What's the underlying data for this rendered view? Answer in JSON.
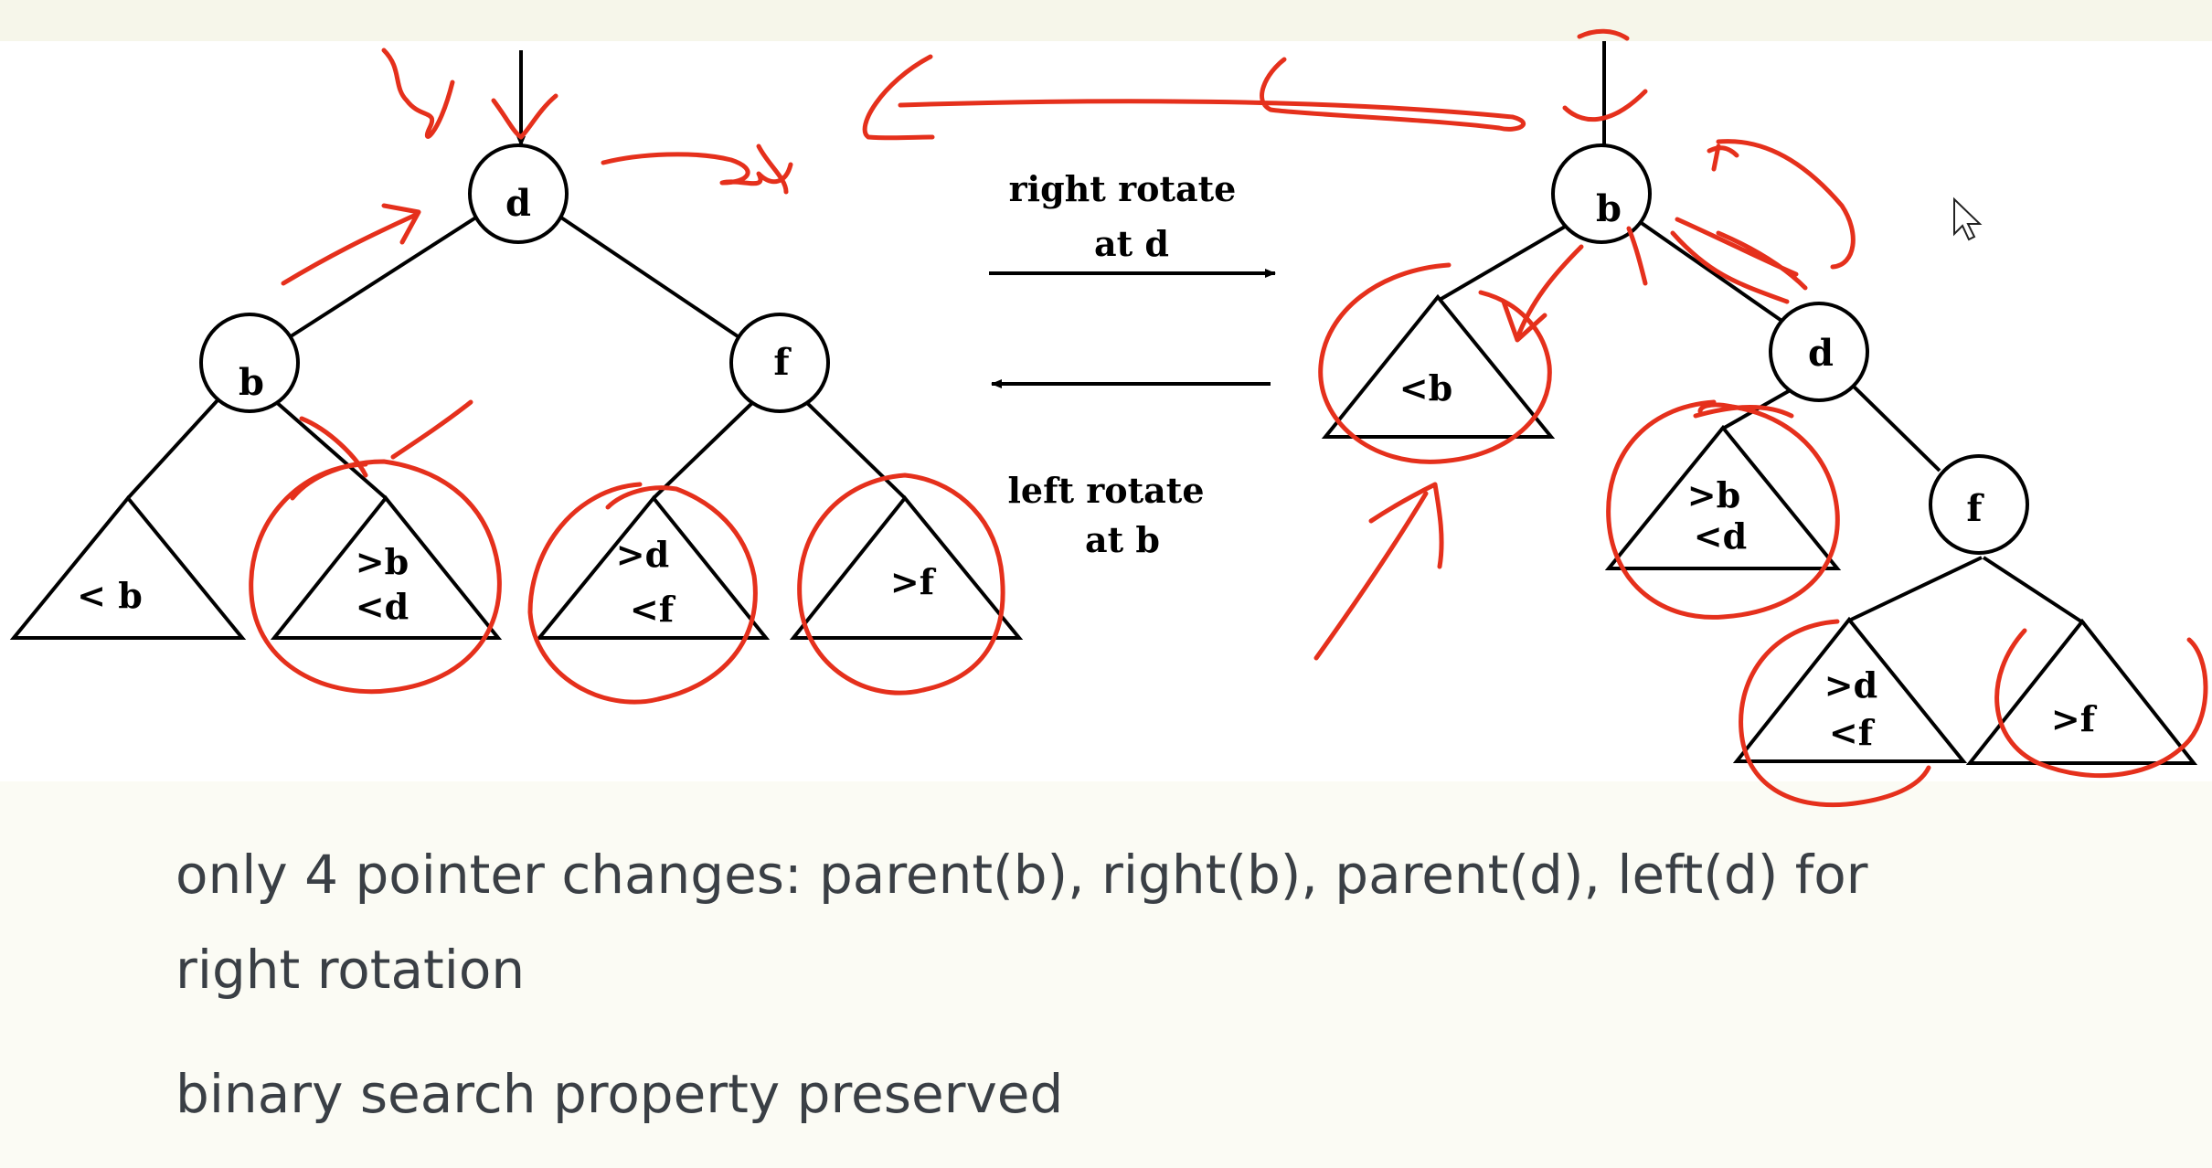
{
  "trees": {
    "before": {
      "nodes": [
        {
          "id": "d",
          "label": "d"
        },
        {
          "id": "b",
          "label": "b"
        },
        {
          "id": "f",
          "label": "f"
        }
      ],
      "subtrees": [
        {
          "id": "lt_b",
          "lines": [
            "< b"
          ]
        },
        {
          "id": "gt_b_lt_d",
          "lines": [
            ">b",
            "<d"
          ]
        },
        {
          "id": "gt_d_lt_f",
          "lines": [
            ">d",
            "<f"
          ]
        },
        {
          "id": "gt_f",
          "lines": [
            ">f"
          ]
        }
      ]
    },
    "after": {
      "nodes": [
        {
          "id": "b",
          "label": "b"
        },
        {
          "id": "d",
          "label": "d"
        },
        {
          "id": "f",
          "label": "f"
        }
      ],
      "subtrees": [
        {
          "id": "lt_b",
          "lines": [
            "<b"
          ]
        },
        {
          "id": "gt_b_lt_d",
          "lines": [
            ">b",
            "<d"
          ]
        },
        {
          "id": "gt_d_lt_f",
          "lines": [
            ">d",
            "<f"
          ]
        },
        {
          "id": "gt_f",
          "lines": [
            ">f"
          ]
        }
      ]
    }
  },
  "operations": {
    "right": {
      "line1": "right rotate",
      "line2": "at d"
    },
    "left": {
      "line1": "left rotate",
      "line2": "at b"
    }
  },
  "notes": {
    "line1": "only 4 pointer changes: parent(b), right(b), parent(d), left(d) for",
    "line2": "right rotation",
    "line3": "binary search property preserved"
  },
  "colors": {
    "annotation_ink": "#e5301c",
    "text": "#3a3f45",
    "background": "#fbfbf4"
  }
}
